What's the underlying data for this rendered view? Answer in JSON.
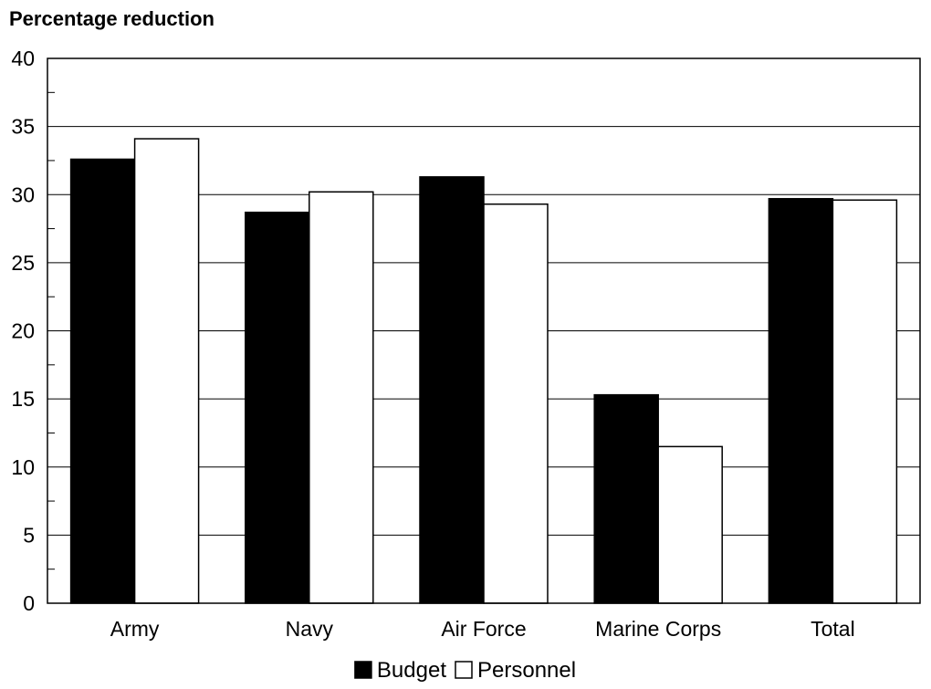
{
  "chart_data": {
    "type": "bar",
    "ylabel": "Percentage reduction",
    "categories": [
      "Army",
      "Navy",
      "Air Force",
      "Marine Corps",
      "Total"
    ],
    "series": [
      {
        "name": "Budget",
        "values": [
          32.6,
          28.7,
          31.3,
          15.3,
          29.7
        ],
        "color": "#000000"
      },
      {
        "name": "Personnel",
        "values": [
          34.1,
          30.2,
          29.3,
          11.5,
          29.6
        ],
        "color": "#ffffff"
      }
    ],
    "ylim": [
      0,
      40
    ],
    "yticks": [
      0,
      5,
      10,
      15,
      20,
      25,
      30,
      35,
      40
    ],
    "grid": true,
    "legend": "bottom-center"
  }
}
